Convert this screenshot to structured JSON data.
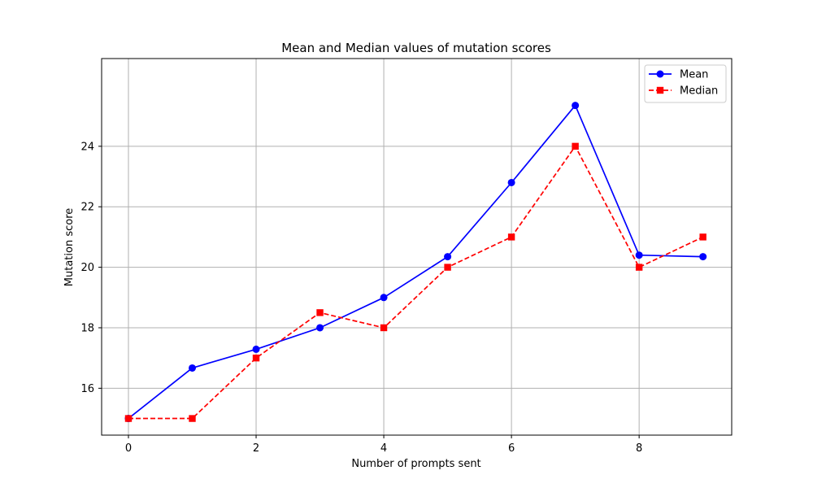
{
  "chart_data": {
    "type": "line",
    "title": "Mean and Median values of mutation scores",
    "xlabel": "Number of prompts sent",
    "ylabel": "Mutation score",
    "x": [
      0,
      1,
      2,
      3,
      4,
      5,
      6,
      7,
      8,
      9
    ],
    "xlim": [
      -0.42,
      9.45
    ],
    "ylim": [
      14.45,
      26.9
    ],
    "xticks": [
      0,
      2,
      4,
      6,
      8
    ],
    "yticks": [
      16,
      18,
      20,
      22,
      24
    ],
    "grid": true,
    "legend_position": "top-right",
    "series": [
      {
        "name": "Mean",
        "color": "#0000ff",
        "linestyle": "solid",
        "marker": "circle",
        "values": [
          15.0,
          16.67,
          17.29,
          18.0,
          19.0,
          20.35,
          22.8,
          25.35,
          20.4,
          20.35
        ]
      },
      {
        "name": "Median",
        "color": "#ff0000",
        "linestyle": "dashed",
        "marker": "square",
        "values": [
          15.0,
          15.0,
          17.0,
          18.5,
          18.0,
          20.0,
          21.0,
          24.0,
          20.0,
          21.0
        ]
      }
    ]
  }
}
